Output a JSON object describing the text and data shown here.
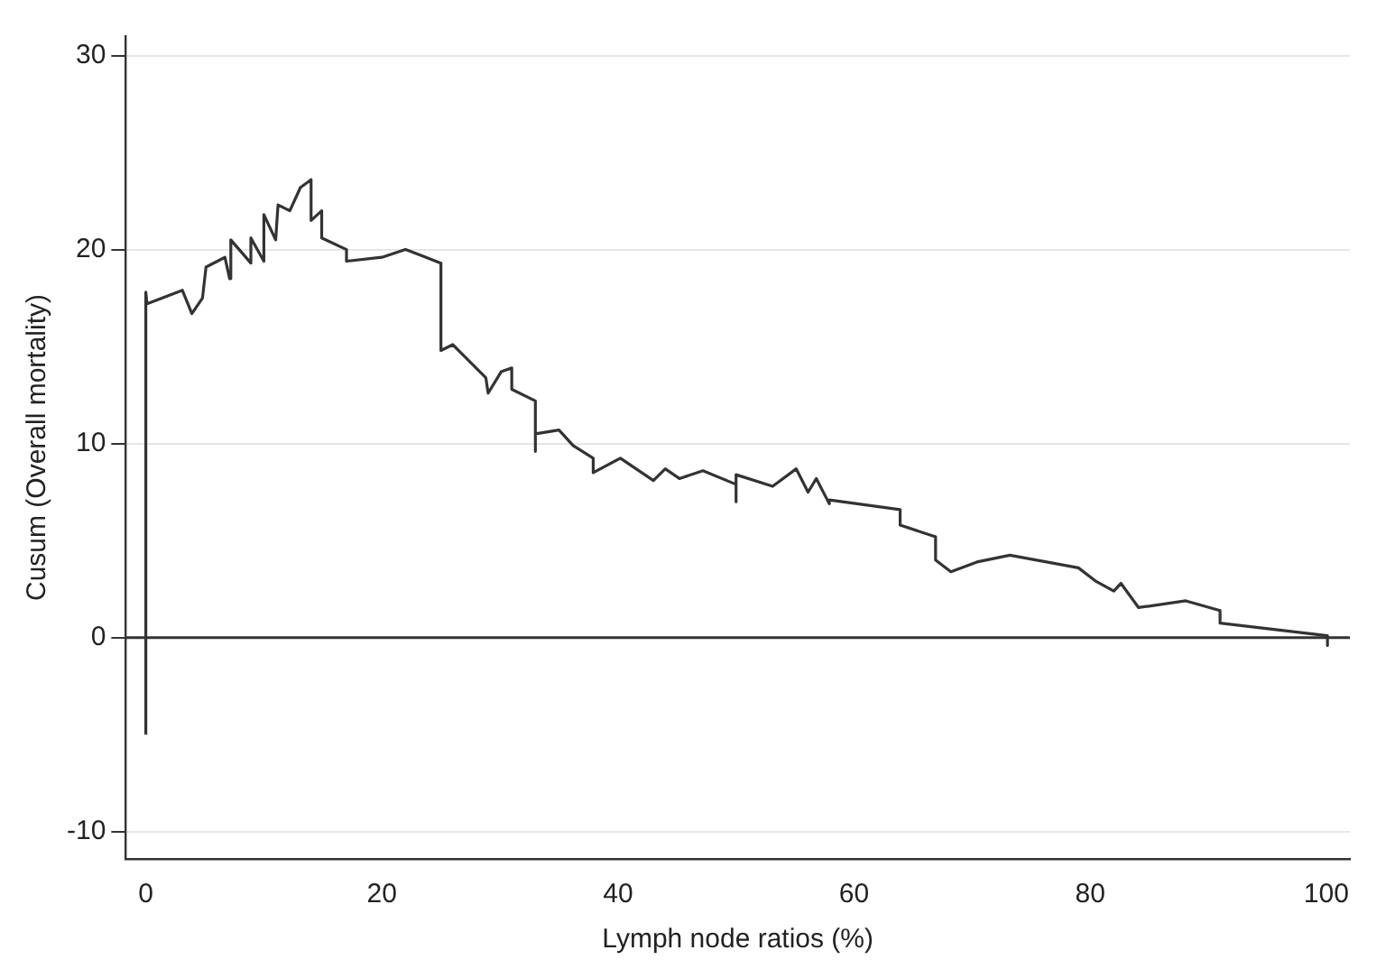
{
  "chart_data": {
    "type": "line",
    "xlabel": "Lymph node ratios (%)",
    "ylabel": "Cusum (Overall mortality)",
    "x": [
      0,
      0,
      0.1,
      3.1,
      3.9,
      4.8,
      5.1,
      6.7,
      7.1,
      7.2,
      8.9,
      8.9,
      10.0,
      10.0,
      11.0,
      11.2,
      12.2,
      13.1,
      14.0,
      14.0,
      14.9,
      14.9,
      17.0,
      17.0,
      20.0,
      22.0,
      23.3,
      25.0,
      25.0,
      26.0,
      28.8,
      29.0,
      30.1,
      31.0,
      31.0,
      33.0,
      33.0,
      33.0,
      35.0,
      36.2,
      37.9,
      37.9,
      40.2,
      43.0,
      44.0,
      45.2,
      47.2,
      50.0,
      50.0,
      50.0,
      53.1,
      55.1,
      56.1,
      56.8,
      57.9,
      57.9,
      63.9,
      63.9,
      66.9,
      66.9,
      68.2,
      70.4,
      73.2,
      79.0,
      80.5,
      82.0,
      82.6,
      84.1,
      88.1,
      91.0,
      91.0,
      100.1,
      100.1
    ],
    "series": [
      {
        "color": "#333333",
        "values": [
          -5,
          17.8,
          17.2,
          17.9,
          16.7,
          17.5,
          19.1,
          19.6,
          18.5,
          20.5,
          19.3,
          20.6,
          19.4,
          21.8,
          20.5,
          22.3,
          22.0,
          23.2,
          23.6,
          21.5,
          22.0,
          20.6,
          20.0,
          19.4,
          19.6,
          20.0,
          19.7,
          19.3,
          14.8,
          15.1,
          13.4,
          12.6,
          13.7,
          13.9,
          12.8,
          12.2,
          9.6,
          10.5,
          10.7,
          9.9,
          9.25,
          8.5,
          9.25,
          8.1,
          8.7,
          8.2,
          8.6,
          7.9,
          7.0,
          8.4,
          7.8,
          8.7,
          7.5,
          8.2,
          6.9,
          7.1,
          6.6,
          5.8,
          5.2,
          4.0,
          3.4,
          3.9,
          4.25,
          3.6,
          2.9,
          2.4,
          2.8,
          1.55,
          1.9,
          1.4,
          0.75,
          0.1,
          -0.4
        ]
      }
    ],
    "xlim": [
      -1.7,
      102
    ],
    "ylim": [
      -11.4,
      31
    ],
    "xticks": [
      0,
      20,
      40,
      60,
      80,
      100
    ],
    "yticks": [
      -10,
      0,
      10,
      20,
      30
    ],
    "grid": "y",
    "marker": "none",
    "line_style": "solid",
    "legend": false,
    "ref_lines": [
      {
        "axis": "y",
        "value": 0,
        "color": "#333333"
      }
    ]
  }
}
